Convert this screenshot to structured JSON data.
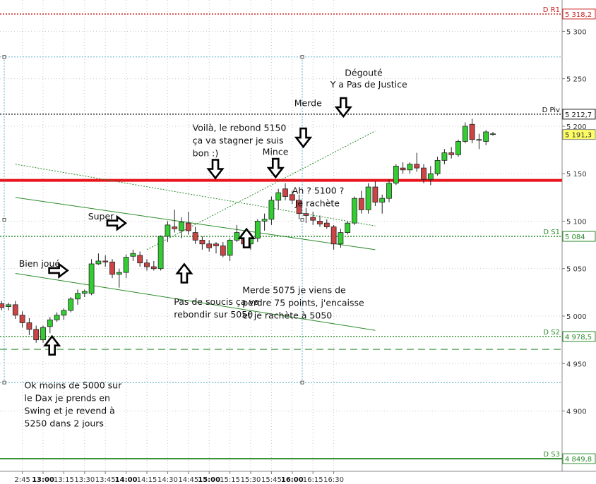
{
  "chart_data": {
    "type": "candlestick",
    "instrument": "DAX",
    "interval": "5min",
    "colors": {
      "up": "#33cc33",
      "down": "#cc4444",
      "grid": "#aaaaaa",
      "pivot": "#e8141c"
    },
    "ylim": [
      4838,
      5330
    ],
    "y_ticks": [
      {
        "value": 5300,
        "label": "5 300"
      },
      {
        "value": 5250,
        "label": "5 250"
      },
      {
        "value": 5200,
        "label": "5 200"
      },
      {
        "value": 5150,
        "label": "5 150"
      },
      {
        "value": 5100,
        "label": "5 100"
      },
      {
        "value": 5050,
        "label": "5 050"
      },
      {
        "value": 5000,
        "label": "5 000"
      },
      {
        "value": 4950,
        "label": "4 950"
      },
      {
        "value": 4900,
        "label": "4 900"
      }
    ],
    "x_ticks": [
      {
        "bar": -3,
        "label": "2:45",
        "bold": false
      },
      {
        "bar": 0,
        "label": "13:00",
        "bold": true
      },
      {
        "bar": 3,
        "label": "13:15",
        "bold": false
      },
      {
        "bar": 6,
        "label": "13:30",
        "bold": false
      },
      {
        "bar": 9,
        "label": "13:45",
        "bold": false
      },
      {
        "bar": 12,
        "label": "14:00",
        "bold": true
      },
      {
        "bar": 15,
        "label": "14:15",
        "bold": false
      },
      {
        "bar": 18,
        "label": "14:30",
        "bold": false
      },
      {
        "bar": 21,
        "label": "14:45",
        "bold": false
      },
      {
        "bar": 24,
        "label": "15:00",
        "bold": true
      },
      {
        "bar": 27,
        "label": "15:15",
        "bold": false
      },
      {
        "bar": 30,
        "label": "15:30",
        "bold": false
      },
      {
        "bar": 33,
        "label": "15:45",
        "bold": false
      },
      {
        "bar": 36,
        "label": "16:00",
        "bold": true
      },
      {
        "bar": 39,
        "label": "16:15",
        "bold": false
      },
      {
        "bar": 42,
        "label": "16:30",
        "bold": false
      }
    ],
    "candles": [
      {
        "o": 5013,
        "h": 5016,
        "l": 5006,
        "c": 5009
      },
      {
        "o": 5010,
        "h": 5014,
        "l": 5006,
        "c": 5012
      },
      {
        "o": 5012,
        "h": 5016,
        "l": 4997,
        "c": 5001
      },
      {
        "o": 5001,
        "h": 5005,
        "l": 4988,
        "c": 4993
      },
      {
        "o": 4993,
        "h": 4998,
        "l": 4980,
        "c": 4986
      },
      {
        "o": 4986,
        "h": 4990,
        "l": 4972,
        "c": 4975
      },
      {
        "o": 4975,
        "h": 4990,
        "l": 4972,
        "c": 4988
      },
      {
        "o": 4989,
        "h": 4999,
        "l": 4982,
        "c": 4996
      },
      {
        "o": 4996,
        "h": 5004,
        "l": 4994,
        "c": 5001
      },
      {
        "o": 5001,
        "h": 5008,
        "l": 4996,
        "c": 5006
      },
      {
        "o": 5006,
        "h": 5020,
        "l": 5004,
        "c": 5018
      },
      {
        "o": 5018,
        "h": 5028,
        "l": 5012,
        "c": 5024
      },
      {
        "o": 5024,
        "h": 5028,
        "l": 5020,
        "c": 5026
      },
      {
        "o": 5024,
        "h": 5060,
        "l": 5022,
        "c": 5055
      },
      {
        "o": 5055,
        "h": 5066,
        "l": 5054,
        "c": 5058
      },
      {
        "o": 5058,
        "h": 5064,
        "l": 5052,
        "c": 5057
      },
      {
        "o": 5057,
        "h": 5060,
        "l": 5040,
        "c": 5044
      },
      {
        "o": 5044,
        "h": 5050,
        "l": 5030,
        "c": 5046
      },
      {
        "o": 5046,
        "h": 5065,
        "l": 5040,
        "c": 5062
      },
      {
        "o": 5063,
        "h": 5070,
        "l": 5058,
        "c": 5066
      },
      {
        "o": 5064,
        "h": 5068,
        "l": 5052,
        "c": 5056
      },
      {
        "o": 5056,
        "h": 5060,
        "l": 5048,
        "c": 5052
      },
      {
        "o": 5052,
        "h": 5058,
        "l": 5048,
        "c": 5050
      },
      {
        "o": 5050,
        "h": 5085,
        "l": 5048,
        "c": 5084
      },
      {
        "o": 5084,
        "h": 5100,
        "l": 5078,
        "c": 5096
      },
      {
        "o": 5094,
        "h": 5112,
        "l": 5088,
        "c": 5092
      },
      {
        "o": 5090,
        "h": 5104,
        "l": 5082,
        "c": 5099
      },
      {
        "o": 5098,
        "h": 5110,
        "l": 5086,
        "c": 5090
      },
      {
        "o": 5088,
        "h": 5094,
        "l": 5076,
        "c": 5080
      },
      {
        "o": 5080,
        "h": 5084,
        "l": 5070,
        "c": 5076
      },
      {
        "o": 5076,
        "h": 5080,
        "l": 5068,
        "c": 5072
      },
      {
        "o": 5076,
        "h": 5078,
        "l": 5066,
        "c": 5074
      },
      {
        "o": 5074,
        "h": 5078,
        "l": 5062,
        "c": 5064
      },
      {
        "o": 5064,
        "h": 5082,
        "l": 5058,
        "c": 5080
      },
      {
        "o": 5080,
        "h": 5096,
        "l": 5078,
        "c": 5088
      },
      {
        "o": 5086,
        "h": 5090,
        "l": 5074,
        "c": 5076
      },
      {
        "o": 5076,
        "h": 5084,
        "l": 5070,
        "c": 5082
      },
      {
        "o": 5082,
        "h": 5102,
        "l": 5078,
        "c": 5100
      },
      {
        "o": 5100,
        "h": 5108,
        "l": 5090,
        "c": 5102
      },
      {
        "o": 5102,
        "h": 5126,
        "l": 5096,
        "c": 5122
      },
      {
        "o": 5122,
        "h": 5134,
        "l": 5112,
        "c": 5130
      },
      {
        "o": 5134,
        "h": 5140,
        "l": 5122,
        "c": 5126
      },
      {
        "o": 5128,
        "h": 5132,
        "l": 5118,
        "c": 5122
      },
      {
        "o": 5122,
        "h": 5128,
        "l": 5102,
        "c": 5108
      },
      {
        "o": 5108,
        "h": 5114,
        "l": 5098,
        "c": 5106
      },
      {
        "o": 5104,
        "h": 5110,
        "l": 5096,
        "c": 5101
      },
      {
        "o": 5100,
        "h": 5106,
        "l": 5094,
        "c": 5097
      },
      {
        "o": 5098,
        "h": 5102,
        "l": 5092,
        "c": 5094
      },
      {
        "o": 5094,
        "h": 5096,
        "l": 5070,
        "c": 5076
      },
      {
        "o": 5076,
        "h": 5092,
        "l": 5072,
        "c": 5088
      },
      {
        "o": 5088,
        "h": 5100,
        "l": 5086,
        "c": 5098
      },
      {
        "o": 5098,
        "h": 5126,
        "l": 5096,
        "c": 5124
      },
      {
        "o": 5124,
        "h": 5132,
        "l": 5108,
        "c": 5112
      },
      {
        "o": 5112,
        "h": 5140,
        "l": 5108,
        "c": 5136
      },
      {
        "o": 5136,
        "h": 5142,
        "l": 5116,
        "c": 5120
      },
      {
        "o": 5120,
        "h": 5128,
        "l": 5108,
        "c": 5124
      },
      {
        "o": 5124,
        "h": 5144,
        "l": 5120,
        "c": 5140
      },
      {
        "o": 5140,
        "h": 5160,
        "l": 5138,
        "c": 5158
      },
      {
        "o": 5156,
        "h": 5162,
        "l": 5150,
        "c": 5154
      },
      {
        "o": 5154,
        "h": 5162,
        "l": 5150,
        "c": 5160
      },
      {
        "o": 5160,
        "h": 5172,
        "l": 5152,
        "c": 5156
      },
      {
        "o": 5156,
        "h": 5160,
        "l": 5140,
        "c": 5144
      },
      {
        "o": 5144,
        "h": 5158,
        "l": 5138,
        "c": 5150
      },
      {
        "o": 5150,
        "h": 5168,
        "l": 5148,
        "c": 5164
      },
      {
        "o": 5164,
        "h": 5176,
        "l": 5160,
        "c": 5172
      },
      {
        "o": 5172,
        "h": 5178,
        "l": 5166,
        "c": 5170
      },
      {
        "o": 5170,
        "h": 5186,
        "l": 5168,
        "c": 5184
      },
      {
        "o": 5184,
        "h": 5204,
        "l": 5182,
        "c": 5200
      },
      {
        "o": 5202,
        "h": 5208,
        "l": 5182,
        "c": 5186
      },
      {
        "o": 5186,
        "h": 5192,
        "l": 5176,
        "c": 5186
      },
      {
        "o": 5184,
        "h": 5196,
        "l": 5180,
        "c": 5194
      },
      {
        "o": 5192,
        "h": 5194,
        "l": 5190,
        "c": 5192
      }
    ],
    "levels": [
      {
        "id": "R1",
        "name": "D R1",
        "value": 5318.2,
        "label": "5 318,2",
        "style": "dotted",
        "color": "#cc2222",
        "label_bg": "#ffffff"
      },
      {
        "id": "Piv",
        "name": "D Piv",
        "value": 5212.7,
        "label": "5 212,7",
        "style": "dotted",
        "color": "#111111",
        "label_bg": "#ffffff"
      },
      {
        "id": "S1",
        "name": "D S1",
        "value": 5084,
        "label": "5 084",
        "style": "dotted",
        "color": "#2a8a2a",
        "label_bg": "#ffffff"
      },
      {
        "id": "S2",
        "name": "D S2",
        "value": 4978.5,
        "label": "4 978,5",
        "style": "dotted",
        "color": "#2a8a2a",
        "label_bg": "#ffffff"
      },
      {
        "id": "S3",
        "name": "D S3",
        "value": 4849.8,
        "label": "4 849,8",
        "style": "solid",
        "color": "#2a8a2a",
        "label_bg": "#ffffff"
      }
    ],
    "last_price": {
      "value": 5191.3,
      "label": "5 191,3",
      "bg": "#ffff66"
    },
    "horizontal_lines": [
      {
        "value": 5143,
        "color": "#e8141c",
        "width": 4,
        "style": "solid"
      },
      {
        "value": 4965,
        "color": "#2a8a2a",
        "width": 1,
        "style": "dashed"
      },
      {
        "value": 5273,
        "color": "#55aacc",
        "width": 1,
        "style": "dotted"
      },
      {
        "value": 4930,
        "color": "#55aacc",
        "width": 1,
        "style": "dotted"
      }
    ],
    "trend_lines": [
      {
        "from": {
          "bar": -4,
          "value": 5125
        },
        "to": {
          "bar": 48,
          "value": 5070
        },
        "color": "#2a8a2a",
        "style": "solid"
      },
      {
        "from": {
          "bar": -4,
          "value": 5045
        },
        "to": {
          "bar": 48,
          "value": 4985
        },
        "color": "#2a8a2a",
        "style": "solid"
      },
      {
        "from": {
          "bar": -4,
          "value": 5160
        },
        "to": {
          "bar": 48,
          "value": 5095
        },
        "color": "#2a8a2a",
        "style": "dotted"
      },
      {
        "from": {
          "bar": 15,
          "value": 5070
        },
        "to": {
          "bar": 48,
          "value": 5195
        },
        "color": "#2a8a2a",
        "style": "dotted"
      }
    ],
    "annotations": [
      {
        "id": "a1",
        "lines": [
          "Bien joué"
        ],
        "anchor": {
          "bar": -3.5,
          "value": 5052
        }
      },
      {
        "id": "a2",
        "lines": [
          "Super"
        ],
        "anchor": {
          "bar": 6.5,
          "value": 5102
        }
      },
      {
        "id": "a3",
        "lines": [
          "Voilà, le rebond 5150",
          "ça va stagner je suis",
          "bon :)"
        ],
        "anchor": {
          "bar": 21.6,
          "value": 5195
        }
      },
      {
        "id": "a4",
        "lines": [
          "Mince"
        ],
        "anchor": {
          "bar": 31.7,
          "value": 5170
        }
      },
      {
        "id": "a5",
        "lines": [
          "Merde"
        ],
        "anchor": {
          "bar": 36.3,
          "value": 5221
        }
      },
      {
        "id": "a6",
        "lines": [
          "Dégouté"
        ],
        "anchor": {
          "bar": 43.6,
          "value": 5253
        }
      },
      {
        "id": "a7",
        "lines": [
          "Y a Pas de Justice"
        ],
        "anchor": {
          "bar": 41.5,
          "value": 5241
        }
      },
      {
        "id": "a8",
        "lines": [
          "Ah ? 5100 ?",
          "  Je rachète"
        ],
        "anchor": {
          "bar": 36.0,
          "value": 5129
        }
      },
      {
        "id": "a9",
        "lines": [
          "Pas de soucis ça va",
          "rebondir sur 5050"
        ],
        "anchor": {
          "bar": 18.9,
          "value": 5012
        }
      },
      {
        "id": "a10",
        "lines": [
          "Merde 5075 je viens de",
          "perdre 75 points, j'encaisse",
          "et je rachète à 5050"
        ],
        "anchor": {
          "bar": 28.8,
          "value": 5024
        }
      },
      {
        "id": "a11",
        "lines": [
          "Ok moins de 5000 sur",
          "le Dax je prends en",
          "Swing et je revend à",
          "5250 dans 2 jours"
        ],
        "anchor": {
          "bar": -2.7,
          "value": 4924
        }
      }
    ],
    "arrows": [
      {
        "direction": "right",
        "bar": 2.2,
        "value": 5048
      },
      {
        "direction": "right",
        "bar": 10.6,
        "value": 5098
      },
      {
        "direction": "down",
        "bar": 24.9,
        "value": 5155
      },
      {
        "direction": "down",
        "bar": 33.6,
        "value": 5156
      },
      {
        "direction": "down",
        "bar": 37.6,
        "value": 5188
      },
      {
        "direction": "down",
        "bar": 43.4,
        "value": 5220
      },
      {
        "direction": "up",
        "bar": 20.4,
        "value": 5045
      },
      {
        "direction": "up",
        "bar": 29.4,
        "value": 5082
      },
      {
        "direction": "up",
        "bar": 1.3,
        "value": 4969
      }
    ]
  }
}
